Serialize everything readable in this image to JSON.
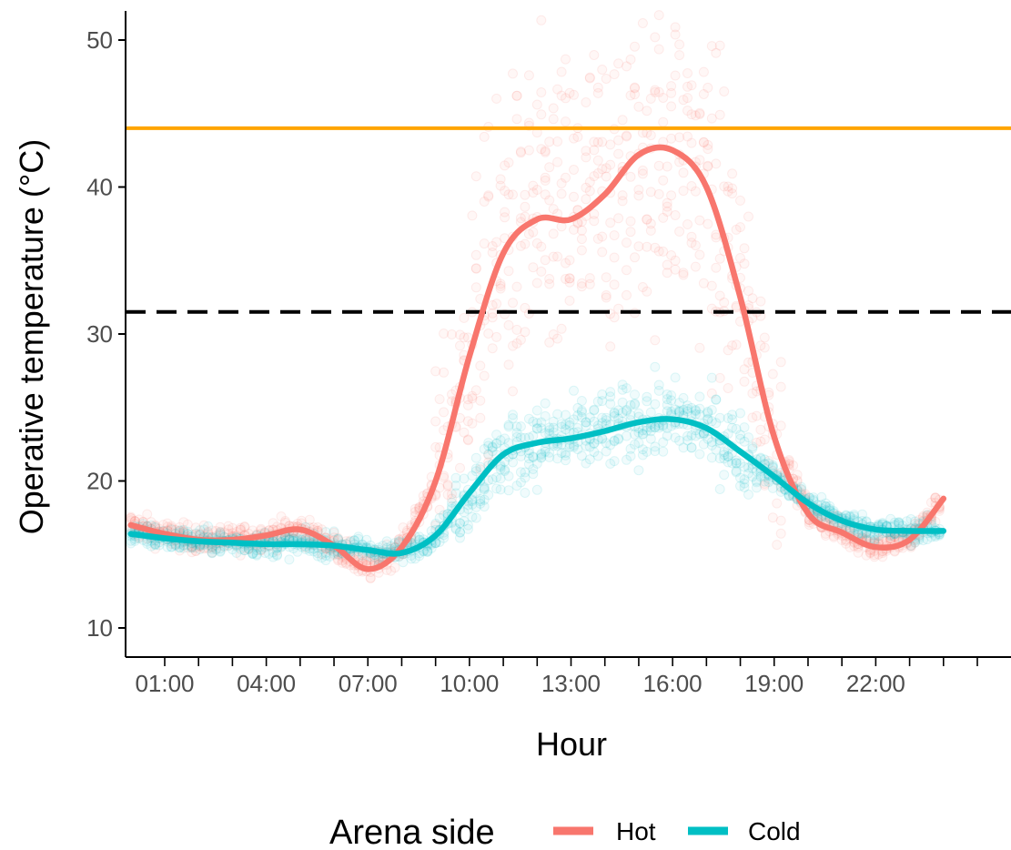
{
  "chart_data": {
    "type": "line",
    "xlabel": "Hour",
    "ylabel": "Operative temperature (°C)",
    "x_ticks": [
      "01:00",
      "04:00",
      "07:00",
      "10:00",
      "13:00",
      "16:00",
      "19:00",
      "22:00"
    ],
    "y_ticks": [
      "10",
      "20",
      "30",
      "40",
      "50"
    ],
    "xlim_hours": [
      -0.3,
      25.5
    ],
    "ylim": [
      8,
      52
    ],
    "grid": false,
    "legend": {
      "title": "Arena side",
      "placement": "bottom",
      "entries": [
        {
          "label": "Hot",
          "color": "#F8766D"
        },
        {
          "label": "Cold",
          "color": "#00BFC4"
        }
      ]
    },
    "reference_lines": [
      {
        "y": 44,
        "color": "#FFA500",
        "style": "solid"
      },
      {
        "y": 31.5,
        "color": "#000000",
        "style": "dashed"
      }
    ],
    "series": [
      {
        "name": "Hot",
        "color": "#F8766D",
        "x_hours": [
          0,
          1,
          2,
          3,
          4,
          5,
          6,
          7,
          8,
          9,
          10,
          11,
          12,
          13,
          14,
          15,
          16,
          17,
          18,
          19,
          20,
          21,
          22,
          23,
          24
        ],
        "y": [
          17.0,
          16.4,
          16.0,
          16.0,
          16.3,
          16.7,
          15.6,
          14.0,
          15.5,
          20.0,
          28.5,
          35.5,
          37.8,
          37.8,
          39.5,
          42.2,
          42.5,
          40.0,
          32.5,
          23.0,
          17.8,
          16.5,
          15.5,
          16.0,
          18.8
        ]
      },
      {
        "name": "Cold",
        "color": "#00BFC4",
        "x_hours": [
          0,
          1,
          2,
          3,
          4,
          5,
          6,
          7,
          8,
          9,
          10,
          11,
          12,
          13,
          14,
          15,
          16,
          17,
          18,
          19,
          20,
          21,
          22,
          23,
          24
        ],
        "y": [
          16.4,
          16.1,
          15.9,
          15.8,
          15.7,
          15.7,
          15.6,
          15.3,
          15.1,
          16.3,
          19.2,
          21.8,
          22.6,
          22.9,
          23.4,
          24.0,
          24.2,
          23.6,
          22.0,
          20.3,
          18.5,
          17.3,
          16.7,
          16.6,
          16.6
        ]
      }
    ]
  }
}
